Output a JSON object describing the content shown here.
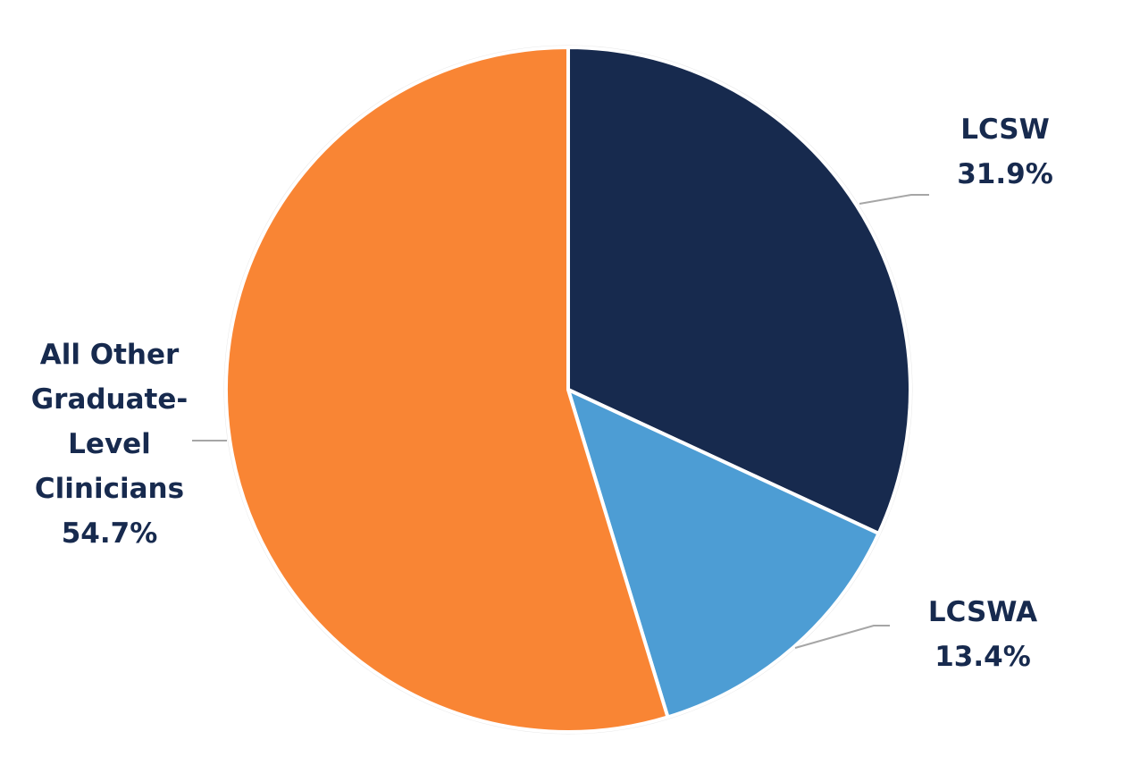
{
  "chart_data": {
    "type": "pie",
    "categories": [
      "LCSW",
      "LCSWA",
      "All Other Graduate-Level Clinicians"
    ],
    "values": [
      31.9,
      13.4,
      54.7
    ],
    "value_labels": [
      "31.9%",
      "13.4%",
      "54.7%"
    ],
    "colors": [
      "#172a4e",
      "#4d9dd4",
      "#f98534"
    ]
  }
}
